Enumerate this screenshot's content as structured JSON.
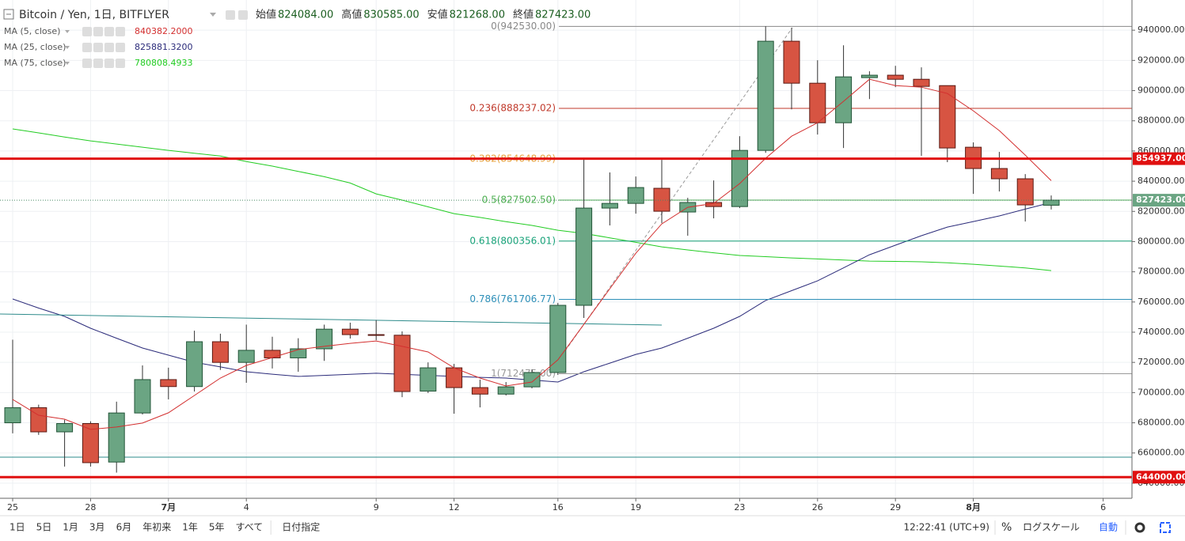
{
  "chart_data": {
    "type": "candlestick",
    "title": "Bitcoin / Yen, 1日, BITFLYER",
    "ohlc_legend": [
      {
        "name": "始値",
        "text": "824084.00"
      },
      {
        "name": "高値",
        "text": "830585.00"
      },
      {
        "name": "安値",
        "text": "821268.00"
      },
      {
        "name": "終値",
        "text": "827423.00"
      }
    ],
    "categories": [
      "25",
      null,
      null,
      "28",
      null,
      null,
      "7月",
      null,
      null,
      "4",
      null,
      null,
      null,
      null,
      "9",
      null,
      null,
      "12",
      null,
      null,
      null,
      "16",
      null,
      null,
      "19",
      null,
      null,
      null,
      "23",
      null,
      null,
      "26",
      null,
      null,
      "29",
      null,
      null,
      "8月",
      null,
      null,
      null,
      null,
      "6"
    ],
    "open": [
      680000,
      690000,
      674000,
      679500,
      654000,
      686500,
      708600,
      704000,
      733700,
      720000,
      728000,
      723000,
      729000,
      742000,
      738400,
      738000,
      701000,
      716400,
      703300,
      699000,
      703800,
      713300,
      757800,
      822200,
      825300,
      835300,
      819600,
      825900,
      823200,
      860400,
      932700,
      904900,
      878700,
      908600,
      910200,
      907500,
      903300,
      862500,
      848400,
      841600,
      824084,
      null,
      null
    ],
    "high": [
      735000,
      692000,
      682000,
      681000,
      694000,
      718000,
      716500,
      741000,
      739000,
      745000,
      737000,
      736000,
      745000,
      746300,
      748000,
      740500,
      720000,
      719000,
      708600,
      707000,
      715400,
      759400,
      855200,
      845800,
      843100,
      854100,
      829000,
      840500,
      869800,
      942600,
      941600,
      920100,
      930000,
      912800,
      916400,
      915400,
      903300,
      865700,
      859400,
      844700,
      830585,
      null,
      null
    ],
    "low": [
      673000,
      672000,
      651000,
      651000,
      647000,
      685500,
      695500,
      700700,
      715000,
      706500,
      716000,
      713800,
      721000,
      735800,
      734700,
      697000,
      699700,
      686000,
      690200,
      698100,
      702800,
      711700,
      749400,
      810700,
      818500,
      812200,
      803900,
      815400,
      822200,
      858800,
      887600,
      870900,
      862000,
      894400,
      902300,
      856800,
      852600,
      831600,
      833200,
      813300,
      821268,
      null,
      null
    ],
    "close": [
      690000,
      674000,
      679500,
      653600,
      686500,
      708600,
      704000,
      733700,
      720000,
      728000,
      723000,
      729000,
      742000,
      738400,
      737900,
      700700,
      716400,
      703300,
      699000,
      703800,
      713300,
      757800,
      822200,
      825300,
      835800,
      820100,
      825900,
      823200,
      860400,
      932700,
      904900,
      878700,
      909100,
      910200,
      907500,
      902800,
      862000,
      848400,
      841600,
      824300,
      827423,
      null,
      null
    ],
    "up_color": "#6ba583",
    "down_color": "#d75442",
    "series": [
      {
        "name": "MA (5, close)",
        "legend_value": "840382.2000",
        "color": "#d32f2f",
        "values": [
          695500,
          685000,
          682400,
          675600,
          677200,
          679800,
          686600,
          698100,
          709600,
          718000,
          723200,
          728500,
          730600,
          732600,
          734200,
          730600,
          726900,
          716400,
          709600,
          704400,
          707000,
          721700,
          745200,
          768800,
          792300,
          811700,
          822700,
          825300,
          838400,
          855200,
          869800,
          878700,
          892900,
          907500,
          903300,
          902300,
          898100,
          886600,
          873500,
          857300,
          840382.2,
          null,
          null
        ]
      },
      {
        "name": "MA (25, close)",
        "legend_value": "825881.3200",
        "color": "#2b2b7a",
        "values": [
          762000,
          756000,
          750500,
          742600,
          736000,
          729500,
          724800,
          720100,
          717000,
          713800,
          712200,
          710700,
          711400,
          712100,
          712800,
          712100,
          711400,
          710700,
          710100,
          709600,
          708300,
          707000,
          713800,
          719500,
          725300,
          729500,
          736000,
          742600,
          750500,
          761000,
          767500,
          774000,
          782600,
          791300,
          797600,
          803900,
          809600,
          813300,
          817000,
          821500,
          825881.32,
          null,
          null
        ]
      },
      {
        "name": "MA (75, close)",
        "legend_value": "780808.4933",
        "color": "#22cc22",
        "values": [
          874600,
          872000,
          869300,
          866700,
          864600,
          862500,
          860400,
          858500,
          856700,
          853000,
          850000,
          846500,
          843000,
          838800,
          831600,
          827500,
          823000,
          818500,
          816000,
          813200,
          810700,
          807500,
          805400,
          802500,
          799500,
          796500,
          794500,
          792600,
          790800,
          790000,
          789200,
          788500,
          787800,
          787100,
          786900,
          786600,
          786000,
          785000,
          783800,
          782600,
          780808.4933,
          null,
          null
        ]
      }
    ],
    "levels": [
      {
        "label": "0(942530.00)",
        "value": 942530,
        "color": "#888888"
      },
      {
        "label": "0.236(888237.02)",
        "value": 888237.02,
        "color": "#c0392b"
      },
      {
        "label": "0.382(854648.99)",
        "value": 854648.99,
        "color": "#e8a33d"
      },
      {
        "label": "0.5(827502.50)",
        "value": 827502.5,
        "color": "#4caf50"
      },
      {
        "label": "0.618(800356.01)",
        "value": 800356.01,
        "color": "#1aa37a"
      },
      {
        "label": "0.786(761706.77)",
        "value": 761706.77,
        "color": "#2d8fb8"
      },
      {
        "label": "1(712475.00)",
        "value": 712475,
        "color": "#999999"
      }
    ],
    "price_lines": [
      {
        "value": 854937,
        "label": "854937.00",
        "color": "#e01010"
      },
      {
        "value": 644000,
        "label": "644000.00",
        "color": "#e01010"
      }
    ],
    "last_price": {
      "value": 827423,
      "label": "827423.00",
      "color": "#6ba583"
    },
    "ylim": [
      630000,
      960000
    ],
    "yticks": [
      {
        "value": 640000,
        "label": "640000.00"
      },
      {
        "value": 660000,
        "label": "660000.00"
      },
      {
        "value": 680000,
        "label": "680000.00"
      },
      {
        "value": 700000,
        "label": "700000.00"
      },
      {
        "value": 720000,
        "label": "720000.00"
      },
      {
        "value": 740000,
        "label": "740000.00"
      },
      {
        "value": 760000,
        "label": "760000.00"
      },
      {
        "value": 780000,
        "label": "780000.00"
      },
      {
        "value": 800000,
        "label": "800000.00"
      },
      {
        "value": 820000,
        "label": "820000.00"
      },
      {
        "value": 840000,
        "label": "840000.00"
      },
      {
        "value": 860000,
        "label": "860000.00"
      },
      {
        "value": 880000,
        "label": "880000.00"
      },
      {
        "value": 900000,
        "label": "900000.00"
      },
      {
        "value": 920000,
        "label": "920000.00"
      },
      {
        "value": 940000,
        "label": "940000.00"
      }
    ],
    "grid": true
  },
  "toolbar": {
    "ranges": [
      "1日",
      "5日",
      "1月",
      "3月",
      "6月",
      "年初来",
      "1年",
      "5年",
      "すべて"
    ],
    "goto": "日付指定",
    "clock": "12:22:41 (UTC+9)",
    "percent": "%",
    "log": "ログスケール",
    "auto": "自動"
  }
}
